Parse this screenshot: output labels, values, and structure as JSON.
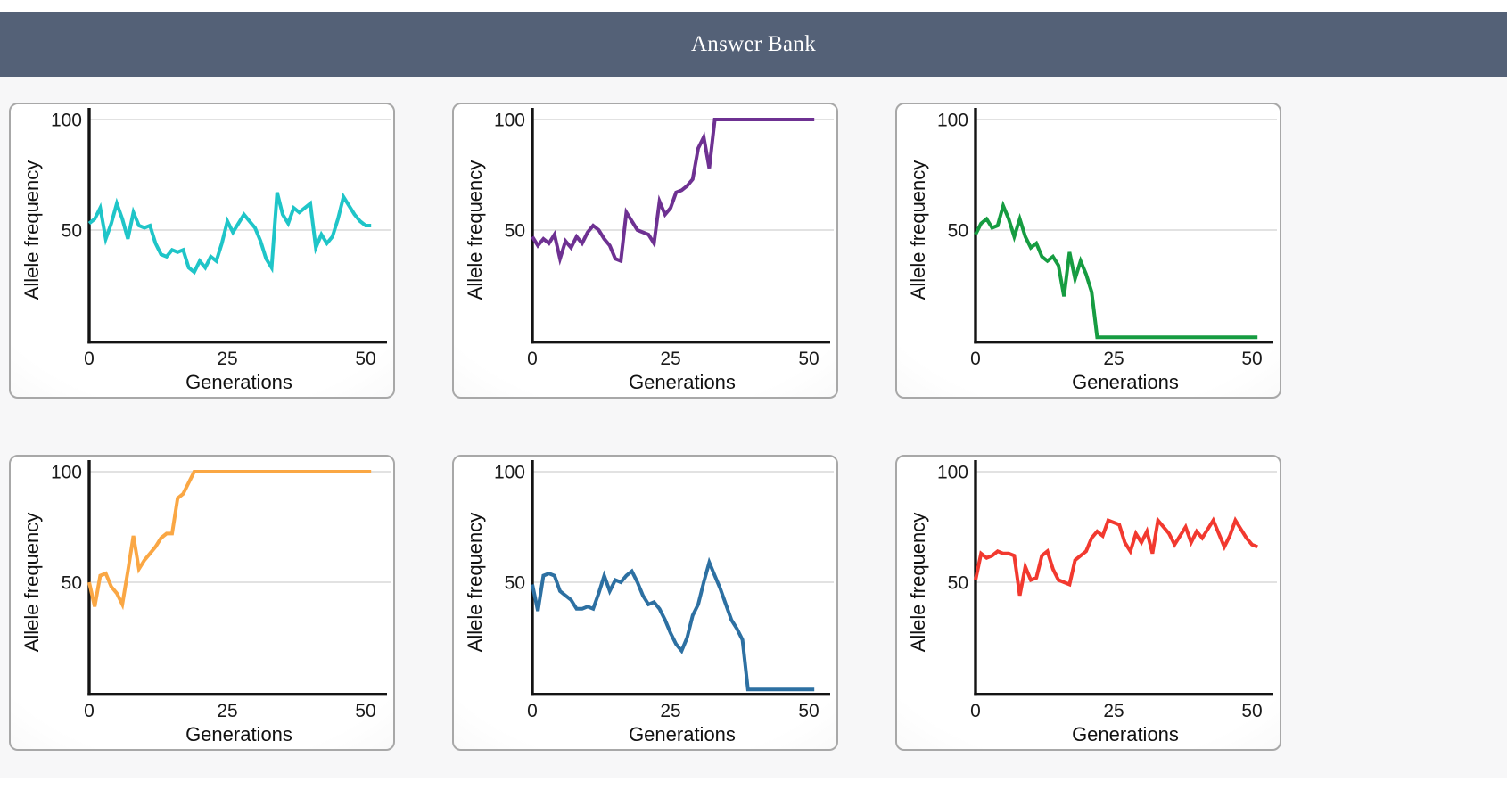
{
  "header": {
    "title": "Answer Bank",
    "background_color": "#546177",
    "text_color": "#ffffff"
  },
  "chart_data": {
    "type": "line",
    "title": "",
    "xlabel": "Generations",
    "ylabel": "Allele frequency",
    "xlim": [
      0,
      52
    ],
    "ylim": [
      0,
      100
    ],
    "xticks": [
      0,
      25,
      50
    ],
    "yticks": [
      50,
      100
    ],
    "grid": "horizontal gridlines at y=50 and y=100",
    "legend_position": "none",
    "x_values": "generation index 0-51, one point per generation",
    "layout": "six answer-option tiles in a 2x3 grid",
    "series": [
      {
        "name": "teal-drift-fluctuating-around-50",
        "color": "#1fc5c8",
        "trend": "fluctuates around 50, never fixes or is lost",
        "values": [
          53,
          55,
          60,
          46,
          53,
          62,
          55,
          46,
          58,
          52,
          51,
          52,
          44,
          39,
          38,
          41,
          40,
          41,
          33,
          31,
          36,
          33,
          38,
          36,
          44,
          54,
          49,
          53,
          57,
          54,
          51,
          45,
          37,
          33,
          67,
          57,
          53,
          60,
          58,
          60,
          62,
          42,
          48,
          44,
          47,
          55,
          65,
          61,
          57,
          54,
          52,
          52
        ]
      },
      {
        "name": "purple-fixation-near-generation-30",
        "color": "#6e3192",
        "trend": "drifts near 45 then rises and fixes at 100 around generation 30",
        "values": [
          47,
          43,
          46,
          44,
          48,
          37,
          45,
          42,
          47,
          44,
          49,
          52,
          50,
          46,
          43,
          37,
          36,
          58,
          54,
          50,
          49,
          48,
          44,
          63,
          57,
          60,
          67,
          68,
          70,
          73,
          87,
          92,
          78,
          100,
          100,
          100,
          100,
          100,
          100,
          100,
          100,
          100,
          100,
          100,
          100,
          100,
          100,
          100,
          100,
          100,
          100,
          100
        ]
      },
      {
        "name": "green-loss-near-generation-21",
        "color": "#169c41",
        "trend": "starts near 50, declines and is lost (~0) around generation 21",
        "values": [
          48,
          53,
          55,
          51,
          52,
          61,
          55,
          47,
          55,
          47,
          42,
          44,
          38,
          36,
          38,
          34,
          20,
          40,
          28,
          36,
          30,
          22,
          1.5,
          1.5,
          1.5,
          1.5,
          1.5,
          1.5,
          1.5,
          1.5,
          1.5,
          1.5,
          1.5,
          1.5,
          1.5,
          1.5,
          1.5,
          1.5,
          1.5,
          1.5,
          1.5,
          1.5,
          1.5,
          1.5,
          1.5,
          1.5,
          1.5,
          1.5,
          1.5,
          1.5,
          1.5,
          1.5
        ]
      },
      {
        "name": "orange-fixation-near-generation-20",
        "color": "#faa744",
        "trend": "rises quickly and fixes at 100 around generation 20",
        "values": [
          50,
          39,
          53,
          54,
          48,
          45,
          40,
          55,
          71,
          56,
          60,
          63,
          66,
          70,
          72,
          72,
          88,
          90,
          95,
          100,
          100,
          100,
          100,
          100,
          100,
          100,
          100,
          100,
          100,
          100,
          100,
          100,
          100,
          100,
          100,
          100,
          100,
          100,
          100,
          100,
          100,
          100,
          100,
          100,
          100,
          100,
          100,
          100,
          100,
          100,
          100,
          100
        ]
      },
      {
        "name": "blue-loss-near-generation-38",
        "color": "#2d70a2",
        "trend": "fluctuates near 45, dips, briefly peaks near 59, then lost (~0) around generation 38",
        "values": [
          49,
          37,
          53,
          54,
          53,
          46,
          44,
          42,
          38,
          38,
          39,
          38,
          45,
          53,
          46,
          51,
          50,
          53,
          55,
          50,
          44,
          40,
          41,
          38,
          33,
          27,
          22,
          19,
          25,
          35,
          40,
          50,
          59,
          53,
          47,
          40,
          33,
          29,
          24,
          1.5,
          1.5,
          1.5,
          1.5,
          1.5,
          1.5,
          1.5,
          1.5,
          1.5,
          1.5,
          1.5,
          1.5,
          1.5
        ]
      },
      {
        "name": "red-drift-rising-to-70s",
        "color": "#f2392f",
        "trend": "fluctuates in the 50s-60s then drifts upward to the 65-78 range",
        "values": [
          51,
          63,
          61,
          62,
          64,
          63,
          63,
          62,
          44,
          57,
          51,
          52,
          62,
          64,
          56,
          51,
          50,
          49,
          60,
          62,
          64,
          70,
          73,
          71,
          78,
          77,
          76,
          68,
          64,
          72,
          68,
          73,
          63,
          78,
          75,
          72,
          67,
          71,
          75,
          68,
          73,
          70,
          74,
          78,
          72,
          66,
          71,
          78,
          74,
          70,
          67,
          66
        ]
      }
    ]
  }
}
